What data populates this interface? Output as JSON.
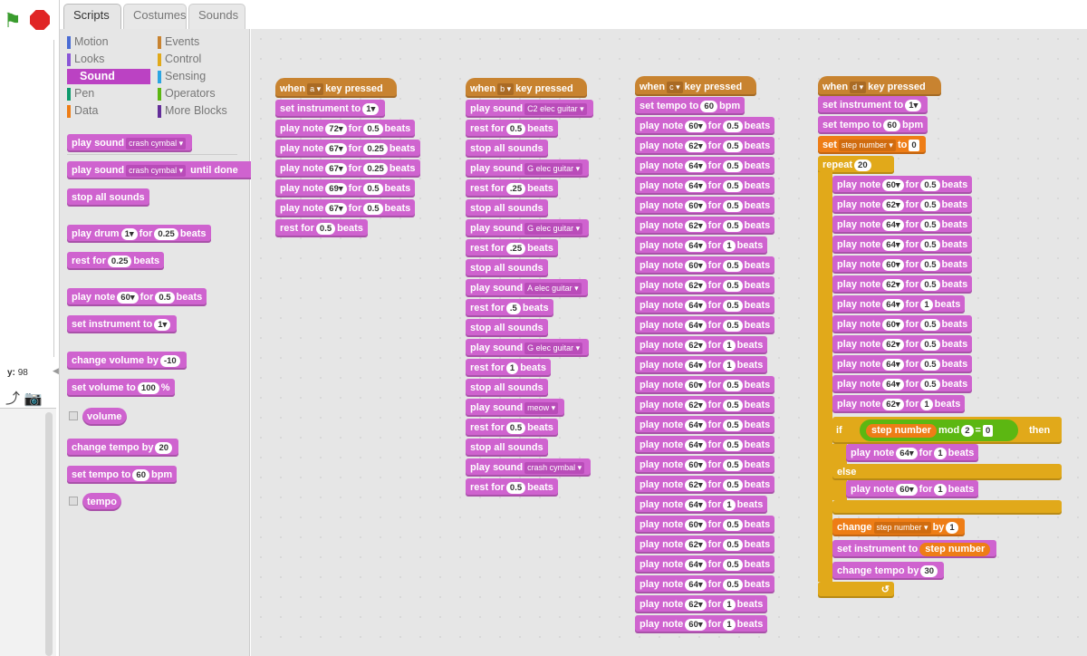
{
  "tabs": [
    "Scripts",
    "Costumes",
    "Sounds"
  ],
  "categories": [
    {
      "label": "Motion",
      "color": "#4a6cd4"
    },
    {
      "label": "Events",
      "color": "#c88330"
    },
    {
      "label": "Looks",
      "color": "#8a55d7"
    },
    {
      "label": "Control",
      "color": "#e1a91a"
    },
    {
      "label": "Sound",
      "color": "#bb42c3"
    },
    {
      "label": "Sensing",
      "color": "#2ca5e2"
    },
    {
      "label": "Pen",
      "color": "#0e9a6c"
    },
    {
      "label": "Operators",
      "color": "#5cb712"
    },
    {
      "label": "Data",
      "color": "#ee7d16"
    },
    {
      "label": "More Blocks",
      "color": "#632d99"
    }
  ],
  "stage": {
    "y_label": "y:",
    "y_value": "98"
  },
  "palette": {
    "play_sound": "play sound",
    "crash": "crash cymbal",
    "until_done": "until done",
    "stop_all": "stop all sounds",
    "play_drum": "play drum",
    "drum_num": "1",
    "for_w": "for",
    "beats": "beats",
    "drum_beats": "0.25",
    "rest_for": "rest for",
    "rest_val": "0.25",
    "play_note": "play note",
    "note_val": "60",
    "note_beats": "0.5",
    "set_instrument": "set instrument to",
    "instr_val": "1",
    "change_volume": "change volume by",
    "vol_delta": "-10",
    "set_volume": "set volume to",
    "vol_val": "100",
    "pct": "%",
    "volume_rep": "volume",
    "change_tempo": "change tempo by",
    "tempo_delta": "20",
    "set_tempo": "set tempo to",
    "tempo_val": "60",
    "bpm": "bpm",
    "tempo_rep": "tempo"
  },
  "colors": {
    "sound": "#cf63cf",
    "events": "#c88330",
    "control": "#e1a91a",
    "data": "#ee7d16",
    "operators": "#5cb712"
  },
  "script_a": {
    "when": "when",
    "key": "a",
    "key_pressed": "key pressed",
    "instr": "1",
    "notes": [
      [
        "72",
        "0.5"
      ],
      [
        "67",
        "0.25"
      ],
      [
        "67",
        "0.25"
      ],
      [
        "69",
        "0.5"
      ],
      [
        "67",
        "0.5"
      ]
    ],
    "rest": "0.5"
  },
  "script_b": {
    "key": "b",
    "items": [
      {
        "t": "sound",
        "v": "C2 elec guitar"
      },
      {
        "t": "rest",
        "v": "0.5"
      },
      {
        "t": "stop"
      },
      {
        "t": "sound",
        "v": "G elec guitar"
      },
      {
        "t": "rest",
        "v": ".25"
      },
      {
        "t": "stop"
      },
      {
        "t": "sound",
        "v": "G elec guitar"
      },
      {
        "t": "rest",
        "v": ".25"
      },
      {
        "t": "stop"
      },
      {
        "t": "sound",
        "v": "A elec guitar"
      },
      {
        "t": "rest",
        "v": ".5"
      },
      {
        "t": "stop"
      },
      {
        "t": "sound",
        "v": "G elec guitar"
      },
      {
        "t": "rest",
        "v": "1"
      },
      {
        "t": "stop"
      },
      {
        "t": "sound",
        "v": "meow"
      },
      {
        "t": "rest",
        "v": "0.5"
      },
      {
        "t": "stop"
      },
      {
        "t": "sound",
        "v": "crash cymbal"
      },
      {
        "t": "rest",
        "v": "0.5"
      }
    ]
  },
  "script_c": {
    "key": "c",
    "tempo": "60",
    "notes": [
      [
        "60",
        "0.5"
      ],
      [
        "62",
        "0.5"
      ],
      [
        "64",
        "0.5"
      ],
      [
        "64",
        "0.5"
      ],
      [
        "60",
        "0.5"
      ],
      [
        "62",
        "0.5"
      ],
      [
        "64",
        "1"
      ],
      [
        "60",
        "0.5"
      ],
      [
        "62",
        "0.5"
      ],
      [
        "64",
        "0.5"
      ],
      [
        "64",
        "0.5"
      ],
      [
        "62",
        "1"
      ],
      [
        "64",
        "1"
      ],
      [
        "60",
        "0.5"
      ],
      [
        "62",
        "0.5"
      ],
      [
        "64",
        "0.5"
      ],
      [
        "64",
        "0.5"
      ],
      [
        "60",
        "0.5"
      ],
      [
        "62",
        "0.5"
      ],
      [
        "64",
        "1"
      ],
      [
        "60",
        "0.5"
      ],
      [
        "62",
        "0.5"
      ],
      [
        "64",
        "0.5"
      ],
      [
        "64",
        "0.5"
      ],
      [
        "62",
        "1"
      ],
      [
        "60",
        "1"
      ]
    ]
  },
  "script_d": {
    "key": "d",
    "instr": "1",
    "tempo": "60",
    "set": "set",
    "var": "step number",
    "to": "to",
    "init": "0",
    "repeat": "repeat",
    "times": "20",
    "notes": [
      [
        "60",
        "0.5"
      ],
      [
        "62",
        "0.5"
      ],
      [
        "64",
        "0.5"
      ],
      [
        "64",
        "0.5"
      ],
      [
        "60",
        "0.5"
      ],
      [
        "62",
        "0.5"
      ],
      [
        "64",
        "1"
      ],
      [
        "60",
        "0.5"
      ],
      [
        "62",
        "0.5"
      ],
      [
        "64",
        "0.5"
      ],
      [
        "64",
        "0.5"
      ],
      [
        "62",
        "1"
      ]
    ],
    "if_label": "if",
    "mod": "mod",
    "mod_val": "2",
    "eq": "=",
    "eq_val": "0",
    "then": "then",
    "if_note": [
      "64",
      "1"
    ],
    "else_label": "else",
    "else_note": [
      "60",
      "1"
    ],
    "change_label": "change",
    "by": "by",
    "change_val": "1",
    "set_instr_label": "set instrument to",
    "change_tempo_label": "change tempo by",
    "change_tempo_val": "30",
    "loop_arrow": "↺"
  }
}
